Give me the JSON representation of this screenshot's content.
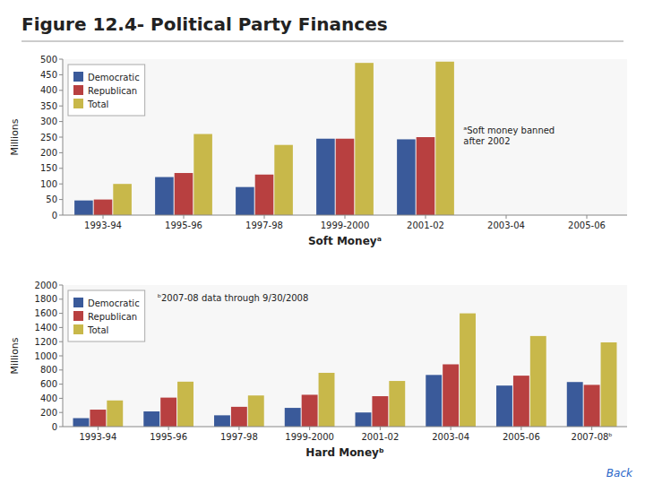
{
  "chart_data": [
    {
      "type": "bar",
      "title": "Figure 12.4- Political Party Finances",
      "xlabel": "Soft Moneyᵃ",
      "ylabel": "Millions",
      "categories": [
        "1993-94",
        "1995-96",
        "1997-98",
        "1999-2000",
        "2001-02",
        "2003-04",
        "2005-06"
      ],
      "series": [
        {
          "name": "Democratic",
          "color": "#3a5a9a",
          "values": [
            47,
            122,
            90,
            245,
            243,
            0,
            0
          ]
        },
        {
          "name": "Republican",
          "color": "#b84040",
          "values": [
            50,
            135,
            130,
            245,
            250,
            0,
            0
          ]
        },
        {
          "name": "Total",
          "color": "#c8b84a",
          "values": [
            100,
            260,
            225,
            488,
            492,
            0,
            0
          ]
        }
      ],
      "ylim": [
        0,
        500
      ],
      "yticks": [
        0,
        50,
        100,
        150,
        200,
        250,
        300,
        350,
        400,
        450,
        500
      ],
      "grid": false,
      "legend": "upper left",
      "annotations": [
        "ᵃSoft money banned\nafter 2002"
      ]
    },
    {
      "type": "bar",
      "xlabel": "Hard Moneyᵇ",
      "ylabel": "Millions",
      "categories": [
        "1993-94",
        "1995-96",
        "1997-98",
        "1999-2000",
        "2001-02",
        "2003-04",
        "2005-06",
        "2007-08ᵇ"
      ],
      "series": [
        {
          "name": "Democratic",
          "color": "#3a5a9a",
          "values": [
            120,
            215,
            160,
            265,
            200,
            730,
            580,
            630
          ]
        },
        {
          "name": "Republican",
          "color": "#b84040",
          "values": [
            240,
            410,
            280,
            450,
            430,
            880,
            720,
            590
          ]
        },
        {
          "name": "Total",
          "color": "#c8b84a",
          "values": [
            370,
            635,
            440,
            760,
            645,
            1600,
            1280,
            1190
          ]
        }
      ],
      "ylim": [
        0,
        2000
      ],
      "yticks": [
        0,
        200,
        400,
        600,
        800,
        1000,
        1200,
        1400,
        1600,
        1800,
        2000
      ],
      "grid": false,
      "legend": "upper left",
      "annotations": [
        "ᵇ2007-08 data through 9/30/2008",
        "Back"
      ]
    }
  ]
}
